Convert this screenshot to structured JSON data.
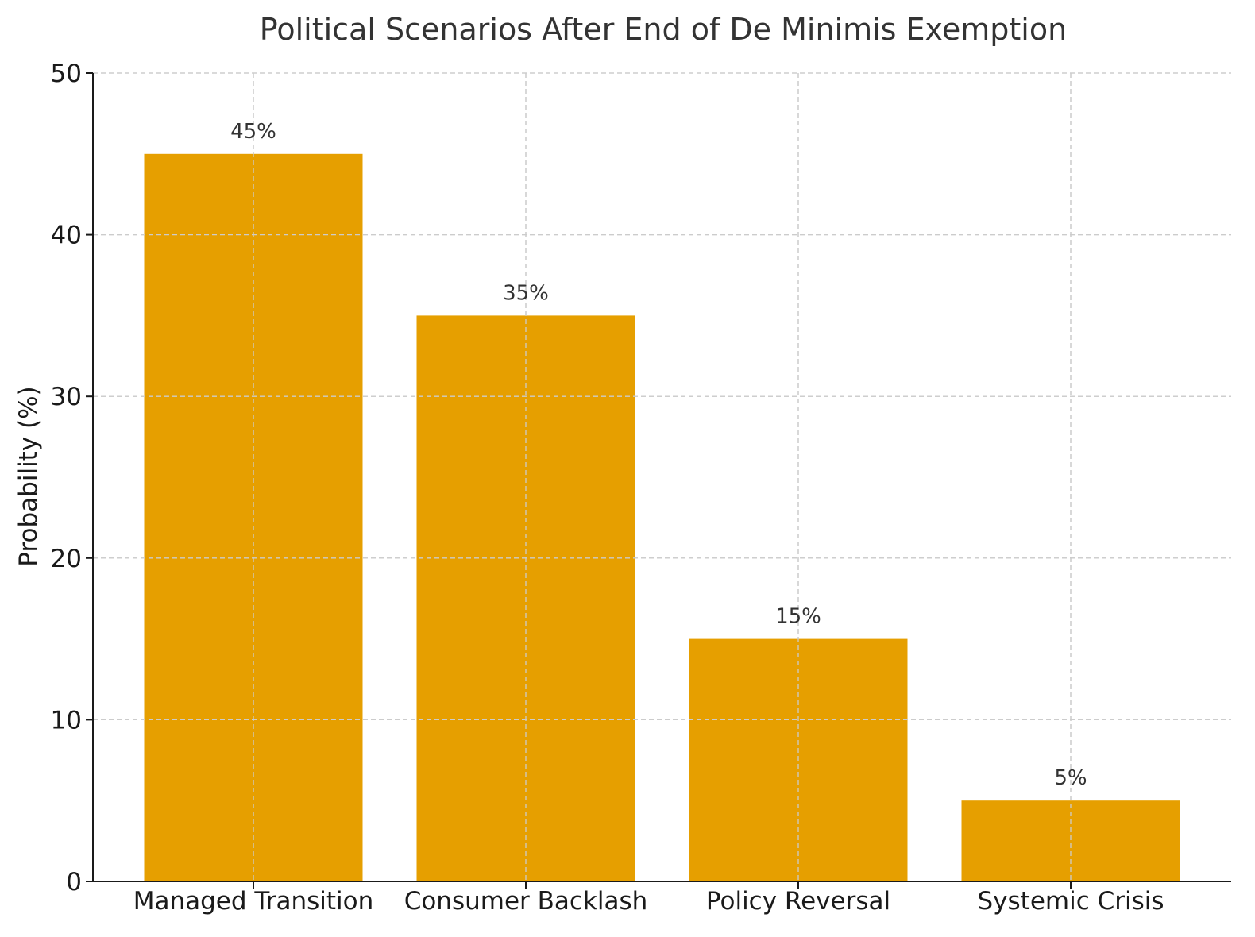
{
  "chart_data": {
    "type": "bar",
    "title": "Political Scenarios After End of De Minimis Exemption",
    "xlabel": "",
    "ylabel": "Probability (%)",
    "categories": [
      "Managed Transition",
      "Consumer Backlash",
      "Policy Reversal",
      "Systemic Crisis"
    ],
    "values": [
      45,
      35,
      15,
      5
    ],
    "data_labels": [
      "45%",
      "35%",
      "15%",
      "5%"
    ],
    "ylim": [
      0,
      50
    ],
    "yticks": [
      0,
      10,
      20,
      30,
      40,
      50
    ],
    "ytick_labels": [
      "0",
      "10",
      "20",
      "30",
      "40",
      "50"
    ],
    "grid": true,
    "grid_style": "dashed",
    "legend": "none",
    "bar_color": "#e69f00",
    "grid_color": "#cccccc",
    "axis_color": "#1a1a1a"
  }
}
